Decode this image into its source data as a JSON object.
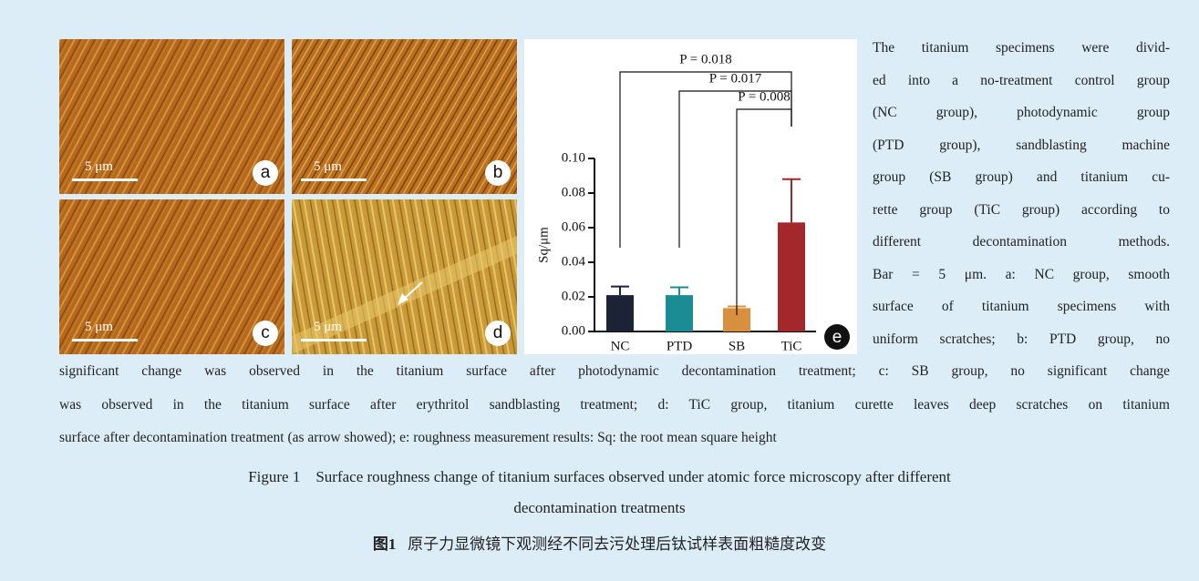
{
  "panels": [
    {
      "label": "a",
      "scale": "5 μm"
    },
    {
      "label": "b",
      "scale": "5 μm"
    },
    {
      "label": "c",
      "scale": "5 μm"
    },
    {
      "label": "d",
      "scale": "5 μm"
    }
  ],
  "chart_data": {
    "type": "bar",
    "panel_label": "e",
    "y_label": "Sq/μm",
    "categories": [
      "NC",
      "PTD",
      "SB",
      "TiC"
    ],
    "values": [
      0.021,
      0.021,
      0.0135,
      0.063
    ],
    "errors": [
      0.005,
      0.0045,
      0.001,
      0.025
    ],
    "colors": [
      "#1c2336",
      "#1b8c93",
      "#d8903e",
      "#a3272b"
    ],
    "ylim": [
      0,
      0.1
    ],
    "yticks": [
      {
        "value": 0,
        "label": "0.00"
      },
      {
        "value": 0.02,
        "label": "0.02"
      },
      {
        "value": 0.04,
        "label": "0.04"
      },
      {
        "value": 0.06,
        "label": "0.06"
      },
      {
        "value": 0.08,
        "label": "0.08"
      },
      {
        "value": 0.1,
        "label": "0.10"
      }
    ],
    "comparisons": [
      {
        "label": "P = 0.018",
        "from": "NC",
        "to": "TiC"
      },
      {
        "label": "P = 0.017",
        "from": "PTD",
        "to": "TiC"
      },
      {
        "label": "P = 0.008",
        "from": "SB",
        "to": "TiC"
      }
    ]
  },
  "text": {
    "side_lines": [
      "The titanium specimens were divid-",
      "ed into a no-treatment control group",
      "(NC group), photodynamic group",
      "(PTD group), sandblasting machine",
      "group (SB group) and titanium cu-",
      "rette group (TiC group) according to",
      "different decontamination methods.",
      "Bar = 5 μm. a: NC group, smooth",
      "surface of titanium specimens with",
      "uniform scratches; b: PTD group, no"
    ],
    "bottom_lines": [
      "significant change was observed in the titanium surface after photodynamic decontamination treatment; c: SB group, no significant change",
      "was observed in the titanium surface after erythritol sandblasting treatment; d: TiC group, titanium curette leaves deep scratches on titanium",
      "surface after decontamination treatment (as arrow showed); e: roughness measurement results: Sq: the root mean square height"
    ]
  },
  "caption": {
    "en_lines": [
      "Figure 1    Surface roughness change of titanium surfaces observed under atomic force microscopy after different",
      "decontamination treatments"
    ],
    "zh_label": "图1",
    "zh_text": "原子力显微镜下观测经不同去污处理后钛试样表面粗糙度改变"
  }
}
